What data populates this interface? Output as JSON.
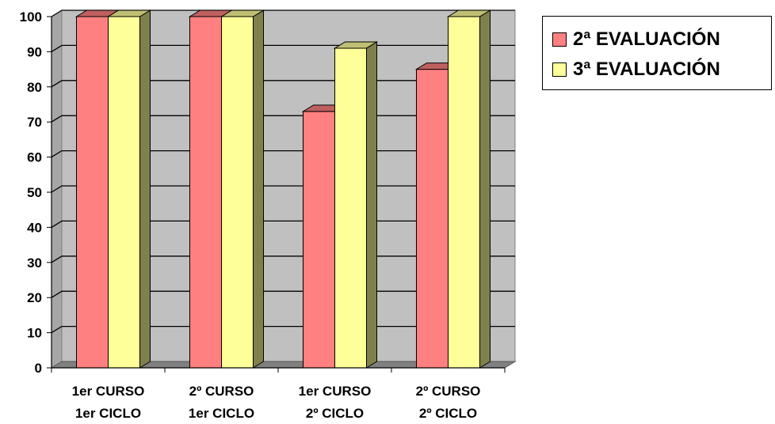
{
  "chart_data": {
    "type": "bar",
    "categories": [
      [
        "1er CURSO",
        "1er CICLO"
      ],
      [
        "2º CURSO",
        "1er CICLO"
      ],
      [
        "1er CURSO",
        "2º CICLO"
      ],
      [
        "2º CURSO",
        "2º CICLO"
      ]
    ],
    "series": [
      {
        "name": "2ª EVALUACIÓN",
        "values": [
          100,
          100,
          73,
          85
        ],
        "color": "#FF8080"
      },
      {
        "name": "3ª EVALUACIÓN",
        "values": [
          100,
          100,
          91,
          100
        ],
        "color": "#FFFF99"
      }
    ],
    "ylim": [
      0,
      100
    ],
    "yticks": [
      "0",
      "10",
      "20",
      "30",
      "40",
      "50",
      "60",
      "70",
      "80",
      "90",
      "100"
    ],
    "grid": true,
    "legend": "top-right",
    "background_color": "#C0C0C0"
  }
}
